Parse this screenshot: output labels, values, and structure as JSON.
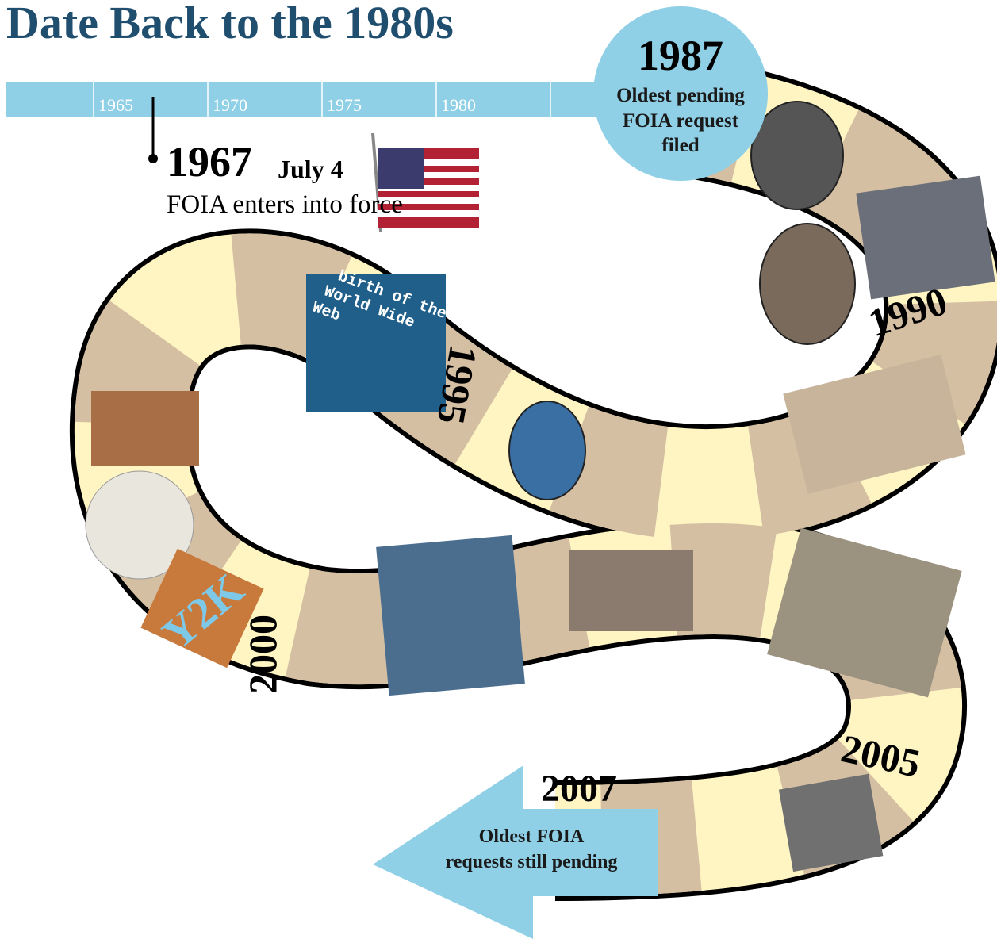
{
  "header": {
    "title": "Date Back to the 1980s"
  },
  "timeline": {
    "ticks": [
      "1965",
      "1970",
      "1975",
      "1980"
    ],
    "event": {
      "year": "1967",
      "date": "July 4",
      "text": "FOIA enters into force"
    }
  },
  "start": {
    "year": "1987",
    "lines": [
      "Oldest pending",
      "FOIA request",
      "filed"
    ]
  },
  "path": {
    "years": [
      "1990",
      "1995",
      "2000",
      "2005"
    ],
    "images": {
      "web": [
        "birth of the",
        "World Wide",
        "Web"
      ],
      "y2k": "Y2K"
    }
  },
  "end": {
    "year": "2007",
    "lines": [
      "Oldest FOIA",
      "requests still pending"
    ]
  }
}
